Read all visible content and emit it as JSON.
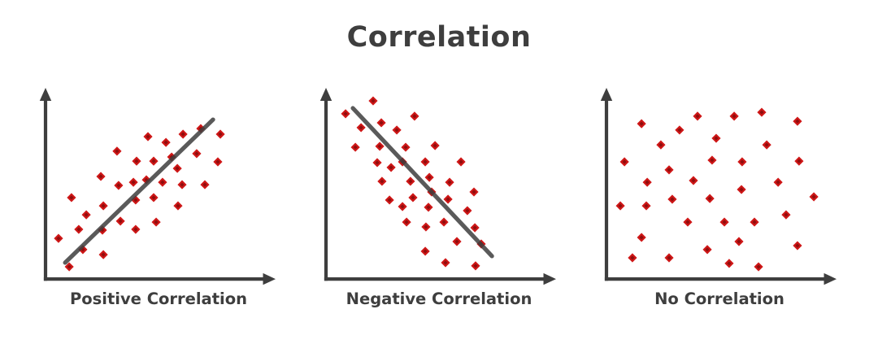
{
  "title": "Correlation",
  "style": {
    "background": "#ffffff",
    "text_color": "#3e3e3e",
    "axis_color": "#3e3e3e",
    "trend_color": "#3e3e3e",
    "point_color": "#cf1717",
    "point_core_color": "#8f0d0d"
  },
  "chart_data": [
    {
      "type": "scatter",
      "label": "Positive Correlation",
      "correlation": "positive",
      "legend": null,
      "axes": {
        "x_label": "",
        "y_label": "",
        "ticks": false,
        "arrows": true,
        "x_range": [
          0,
          100
        ],
        "y_range": [
          0,
          100
        ]
      },
      "trendline": {
        "x1": 8.6,
        "y1": 8.7,
        "x2": 73.6,
        "y2": 85.2
      },
      "points": [
        [
          5.7,
          21.7
        ],
        [
          10.4,
          6.5
        ],
        [
          11.4,
          43.5
        ],
        [
          14.6,
          26.5
        ],
        [
          16.4,
          15.7
        ],
        [
          17.9,
          34.3
        ],
        [
          24.3,
          54.8
        ],
        [
          25.4,
          39.1
        ],
        [
          25.0,
          26.1
        ],
        [
          25.4,
          13.0
        ],
        [
          31.4,
          68.3
        ],
        [
          32.1,
          50.0
        ],
        [
          32.9,
          30.9
        ],
        [
          38.6,
          51.7
        ],
        [
          39.6,
          26.5
        ],
        [
          40.0,
          63.0
        ],
        [
          39.6,
          42.2
        ],
        [
          45.0,
          76.1
        ],
        [
          44.3,
          53.0
        ],
        [
          47.5,
          63.0
        ],
        [
          47.5,
          43.5
        ],
        [
          48.6,
          30.4
        ],
        [
          51.4,
          51.7
        ],
        [
          52.9,
          73.0
        ],
        [
          55.4,
          65.2
        ],
        [
          57.9,
          59.1
        ],
        [
          58.2,
          39.1
        ],
        [
          60.4,
          77.4
        ],
        [
          60.0,
          50.4
        ],
        [
          66.4,
          67.0
        ],
        [
          68.2,
          80.4
        ],
        [
          70.0,
          50.4
        ],
        [
          75.7,
          62.6
        ],
        [
          76.8,
          77.4
        ]
      ]
    },
    {
      "type": "scatter",
      "label": "Negative Correlation",
      "correlation": "negative",
      "legend": null,
      "axes": {
        "x_label": "",
        "y_label": "",
        "ticks": false,
        "arrows": true,
        "x_range": [
          0,
          100
        ],
        "y_range": [
          0,
          100
        ]
      },
      "trendline": {
        "x1": 11.8,
        "y1": 91.3,
        "x2": 72.9,
        "y2": 12.2
      },
      "points": [
        [
          8.6,
          88.3
        ],
        [
          20.7,
          95.2
        ],
        [
          15.4,
          80.9
        ],
        [
          12.9,
          70.4
        ],
        [
          24.3,
          83.5
        ],
        [
          31.1,
          79.6
        ],
        [
          38.9,
          87.0
        ],
        [
          23.6,
          70.9
        ],
        [
          35.0,
          70.4
        ],
        [
          47.9,
          71.3
        ],
        [
          22.5,
          62.2
        ],
        [
          28.6,
          59.6
        ],
        [
          33.6,
          62.6
        ],
        [
          43.6,
          62.6
        ],
        [
          59.3,
          62.6
        ],
        [
          24.6,
          52.2
        ],
        [
          37.1,
          52.2
        ],
        [
          45.4,
          54.3
        ],
        [
          54.3,
          51.7
        ],
        [
          65.0,
          46.5
        ],
        [
          27.9,
          42.2
        ],
        [
          38.2,
          43.5
        ],
        [
          46.4,
          46.5
        ],
        [
          53.6,
          42.6
        ],
        [
          33.6,
          38.7
        ],
        [
          45.0,
          38.3
        ],
        [
          51.8,
          30.4
        ],
        [
          62.1,
          36.5
        ],
        [
          65.4,
          27.4
        ],
        [
          35.4,
          30.4
        ],
        [
          43.9,
          27.8
        ],
        [
          57.5,
          20.0
        ],
        [
          68.2,
          18.7
        ],
        [
          43.6,
          14.8
        ],
        [
          52.5,
          8.7
        ],
        [
          65.7,
          7.0
        ]
      ]
    },
    {
      "type": "scatter",
      "label": "No Correlation",
      "correlation": "none",
      "legend": null,
      "axes": {
        "x_label": "",
        "y_label": "",
        "ticks": false,
        "arrows": true,
        "x_range": [
          0,
          100
        ],
        "y_range": [
          0,
          100
        ]
      },
      "trendline": null,
      "points": [
        [
          15.4,
          83.0
        ],
        [
          32.1,
          79.6
        ],
        [
          40.0,
          87.0
        ],
        [
          56.1,
          87.0
        ],
        [
          68.2,
          89.1
        ],
        [
          83.9,
          84.3
        ],
        [
          23.9,
          71.7
        ],
        [
          48.2,
          75.2
        ],
        [
          70.4,
          71.7
        ],
        [
          7.9,
          62.6
        ],
        [
          27.5,
          58.3
        ],
        [
          46.4,
          63.5
        ],
        [
          59.6,
          62.6
        ],
        [
          84.6,
          63.0
        ],
        [
          17.9,
          51.7
        ],
        [
          38.2,
          52.6
        ],
        [
          59.3,
          47.8
        ],
        [
          75.4,
          51.7
        ],
        [
          91.1,
          43.9
        ],
        [
          6.1,
          39.1
        ],
        [
          17.5,
          39.1
        ],
        [
          28.9,
          42.6
        ],
        [
          45.4,
          43.0
        ],
        [
          35.7,
          30.4
        ],
        [
          51.8,
          30.4
        ],
        [
          65.0,
          30.4
        ],
        [
          78.9,
          34.3
        ],
        [
          15.4,
          22.2
        ],
        [
          58.2,
          20.0
        ],
        [
          83.9,
          17.8
        ],
        [
          11.4,
          11.3
        ],
        [
          27.5,
          11.3
        ],
        [
          44.3,
          15.7
        ],
        [
          53.9,
          8.3
        ],
        [
          66.8,
          6.5
        ]
      ]
    }
  ]
}
